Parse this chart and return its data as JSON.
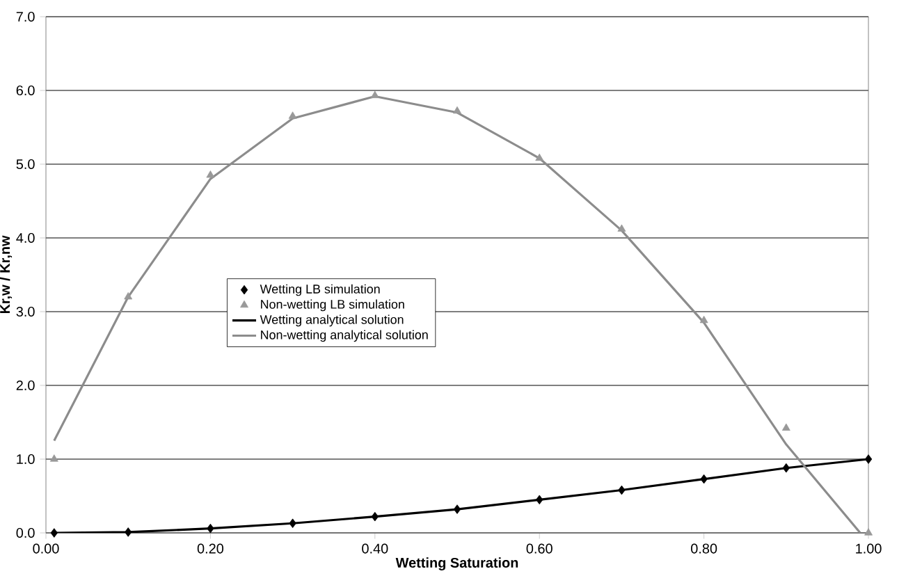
{
  "chart_data": {
    "type": "line",
    "xlabel": "Wetting Saturation",
    "ylabel": "Kr,w / Kr,nw",
    "xlim": [
      0,
      1
    ],
    "ylim": [
      0,
      7
    ],
    "xticks": [
      {
        "value": 0,
        "label": "0.00"
      },
      {
        "value": 0.2,
        "label": "0.20"
      },
      {
        "value": 0.4,
        "label": "0.40"
      },
      {
        "value": 0.6,
        "label": "0.60"
      },
      {
        "value": 0.8,
        "label": "0.80"
      },
      {
        "value": 1,
        "label": "1.00"
      }
    ],
    "yticks": [
      {
        "value": 0,
        "label": "0.0"
      },
      {
        "value": 1,
        "label": "1.0"
      },
      {
        "value": 2,
        "label": "2.0"
      },
      {
        "value": 3,
        "label": "3.0"
      },
      {
        "value": 4,
        "label": "4.0"
      },
      {
        "value": 5,
        "label": "5.0"
      },
      {
        "value": 6,
        "label": "6.0"
      },
      {
        "value": 7,
        "label": "7.0"
      }
    ],
    "grid": "y",
    "legend": "center",
    "series": [
      {
        "name": "Wetting LB simulation",
        "type": "scatter",
        "marker": "diamond",
        "color": "#000000",
        "x": [
          0.01,
          0.1,
          0.2,
          0.3,
          0.4,
          0.5,
          0.6,
          0.7,
          0.8,
          0.9,
          1.0
        ],
        "values": [
          0.0,
          0.01,
          0.06,
          0.13,
          0.22,
          0.32,
          0.45,
          0.58,
          0.73,
          0.88,
          1.0
        ]
      },
      {
        "name": "Non-wetting LB simulation",
        "type": "scatter",
        "marker": "triangle",
        "color": "#999999",
        "x": [
          0.01,
          0.1,
          0.2,
          0.3,
          0.4,
          0.5,
          0.6,
          0.7,
          0.8,
          0.9,
          1.0
        ],
        "values": [
          1.0,
          3.2,
          4.85,
          5.65,
          5.93,
          5.72,
          5.08,
          4.12,
          2.88,
          1.42,
          0.0
        ]
      },
      {
        "name": "Wetting analytical solution",
        "type": "line",
        "marker": "none",
        "color": "#000000",
        "x": [
          0.01,
          0.1,
          0.2,
          0.3,
          0.4,
          0.5,
          0.6,
          0.7,
          0.8,
          0.9,
          1.0
        ],
        "values": [
          0.0,
          0.01,
          0.06,
          0.13,
          0.22,
          0.32,
          0.45,
          0.58,
          0.73,
          0.88,
          1.0
        ]
      },
      {
        "name": "Non-wetting analytical solution",
        "type": "line",
        "marker": "none",
        "color": "#8c8c8c",
        "x": [
          0.01,
          0.1,
          0.2,
          0.3,
          0.4,
          0.5,
          0.6,
          0.7,
          0.8,
          0.9,
          0.99
        ],
        "values": [
          1.25,
          3.2,
          4.8,
          5.62,
          5.92,
          5.7,
          5.08,
          4.1,
          2.85,
          1.2,
          0.0
        ]
      }
    ]
  }
}
